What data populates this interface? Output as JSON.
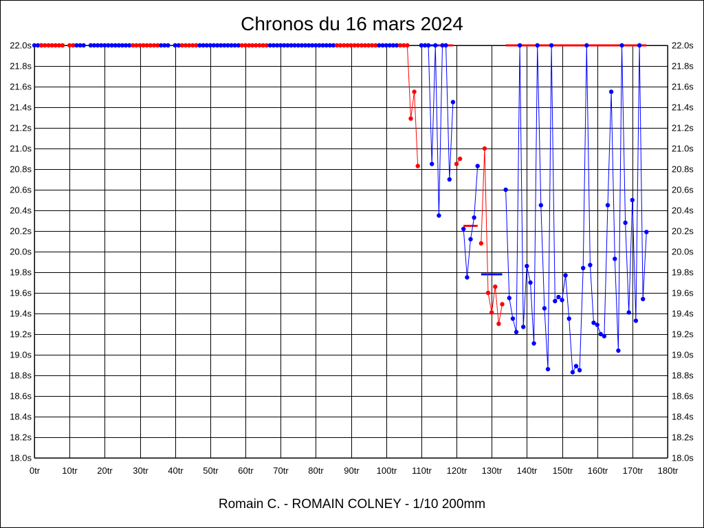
{
  "page": {
    "title": "Chronos du 16 mars 2024",
    "footer": "Romain C. - ROMAIN COLNEY - 1/10 200mm"
  },
  "chart_data": {
    "type": "line",
    "title": "Chronos du 16 mars 2024",
    "xlabel": "",
    "ylabel": "",
    "xlim": [
      0,
      180
    ],
    "ylim": [
      18.0,
      22.0
    ],
    "grid": true,
    "x_ticks": [
      0,
      10,
      20,
      30,
      40,
      50,
      60,
      70,
      80,
      90,
      100,
      110,
      120,
      130,
      140,
      150,
      160,
      170,
      180
    ],
    "x_tick_labels": [
      "0tr",
      "10tr",
      "20tr",
      "30tr",
      "40tr",
      "50tr",
      "60tr",
      "70tr",
      "80tr",
      "90tr",
      "100tr",
      "110tr",
      "120tr",
      "130tr",
      "140tr",
      "150tr",
      "160tr",
      "170tr",
      "180tr"
    ],
    "y_ticks": [
      18.0,
      18.2,
      18.4,
      18.6,
      18.8,
      19.0,
      19.2,
      19.4,
      19.6,
      19.8,
      20.0,
      20.2,
      20.4,
      20.6,
      20.8,
      21.0,
      21.2,
      21.4,
      21.6,
      21.8,
      22.0
    ],
    "y_tick_labels": [
      "18.0s",
      "18.2s",
      "18.4s",
      "18.6s",
      "18.8s",
      "19.0s",
      "19.2s",
      "19.4s",
      "19.6s",
      "19.8s",
      "20.0s",
      "20.2s",
      "20.4s",
      "20.6s",
      "20.8s",
      "21.0s",
      "21.2s",
      "21.4s",
      "21.6s",
      "21.8s",
      "22.0s"
    ],
    "colors": {
      "red": "#ff0000",
      "blue": "#0000ff"
    },
    "series": [
      {
        "color": "#0000ff",
        "points": [
          [
            0,
            22.0
          ],
          [
            1,
            22.0
          ],
          [
            2,
            22.0
          ]
        ]
      },
      {
        "color": "#ff0000",
        "points": [
          [
            2,
            22.0
          ],
          [
            3,
            22.0
          ],
          [
            4,
            22.0
          ],
          [
            5,
            22.0
          ],
          [
            6,
            22.0
          ],
          [
            7,
            22.0
          ],
          [
            8,
            22.0
          ]
        ]
      },
      {
        "color": "#ff0000",
        "points": [
          [
            10,
            22.0
          ],
          [
            11,
            22.0
          ]
        ]
      },
      {
        "color": "#0000ff",
        "points": [
          [
            12,
            22.0
          ],
          [
            13,
            22.0
          ],
          [
            14,
            22.0
          ]
        ]
      },
      {
        "color": "#0000ff",
        "points": [
          [
            16,
            22.0
          ],
          [
            17,
            22.0
          ],
          [
            18,
            22.0
          ],
          [
            19,
            22.0
          ],
          [
            20,
            22.0
          ],
          [
            21,
            22.0
          ],
          [
            22,
            22.0
          ],
          [
            23,
            22.0
          ],
          [
            24,
            22.0
          ],
          [
            25,
            22.0
          ],
          [
            26,
            22.0
          ],
          [
            27,
            22.0
          ]
        ]
      },
      {
        "color": "#ff0000",
        "points": [
          [
            28,
            22.0
          ],
          [
            29,
            22.0
          ],
          [
            30,
            22.0
          ],
          [
            31,
            22.0
          ],
          [
            32,
            22.0
          ],
          [
            33,
            22.0
          ],
          [
            34,
            22.0
          ],
          [
            35,
            22.0
          ]
        ]
      },
      {
        "color": "#0000ff",
        "points": [
          [
            36,
            22.0
          ],
          [
            37,
            22.0
          ],
          [
            38,
            22.0
          ]
        ]
      },
      {
        "color": "#0000ff",
        "points": [
          [
            40,
            22.0
          ],
          [
            41,
            22.0
          ]
        ]
      },
      {
        "color": "#ff0000",
        "points": [
          [
            42,
            22.0
          ],
          [
            43,
            22.0
          ],
          [
            44,
            22.0
          ],
          [
            45,
            22.0
          ],
          [
            46,
            22.0
          ]
        ]
      },
      {
        "color": "#0000ff",
        "points": [
          [
            47,
            22.0
          ],
          [
            48,
            22.0
          ],
          [
            49,
            22.0
          ],
          [
            50,
            22.0
          ],
          [
            51,
            22.0
          ],
          [
            52,
            22.0
          ],
          [
            53,
            22.0
          ],
          [
            54,
            22.0
          ],
          [
            55,
            22.0
          ],
          [
            56,
            22.0
          ],
          [
            57,
            22.0
          ],
          [
            58,
            22.0
          ]
        ]
      },
      {
        "color": "#ff0000",
        "points": [
          [
            59,
            22.0
          ],
          [
            60,
            22.0
          ],
          [
            61,
            22.0
          ],
          [
            62,
            22.0
          ],
          [
            63,
            22.0
          ],
          [
            64,
            22.0
          ],
          [
            65,
            22.0
          ],
          [
            66,
            22.0
          ]
        ]
      },
      {
        "color": "#0000ff",
        "points": [
          [
            67,
            22.0
          ],
          [
            68,
            22.0
          ],
          [
            69,
            22.0
          ],
          [
            70,
            22.0
          ],
          [
            71,
            22.0
          ],
          [
            72,
            22.0
          ],
          [
            73,
            22.0
          ],
          [
            74,
            22.0
          ],
          [
            75,
            22.0
          ],
          [
            76,
            22.0
          ],
          [
            77,
            22.0
          ],
          [
            78,
            22.0
          ],
          [
            79,
            22.0
          ],
          [
            80,
            22.0
          ],
          [
            81,
            22.0
          ],
          [
            82,
            22.0
          ],
          [
            83,
            22.0
          ],
          [
            84,
            22.0
          ],
          [
            85,
            22.0
          ]
        ]
      },
      {
        "color": "#ff0000",
        "points": [
          [
            86,
            22.0
          ],
          [
            87,
            22.0
          ],
          [
            88,
            22.0
          ],
          [
            89,
            22.0
          ],
          [
            90,
            22.0
          ],
          [
            91,
            22.0
          ],
          [
            92,
            22.0
          ],
          [
            93,
            22.0
          ],
          [
            94,
            22.0
          ],
          [
            95,
            22.0
          ],
          [
            96,
            22.0
          ],
          [
            97,
            22.0
          ]
        ]
      },
      {
        "color": "#0000ff",
        "points": [
          [
            98,
            22.0
          ],
          [
            99,
            22.0
          ],
          [
            100,
            22.0
          ],
          [
            101,
            22.0
          ],
          [
            102,
            22.0
          ],
          [
            103,
            22.0
          ]
        ]
      },
      {
        "color": "#ff0000",
        "points": [
          [
            104,
            22.0
          ],
          [
            105,
            22.0
          ],
          [
            106,
            22.0
          ],
          [
            107,
            21.29
          ],
          [
            108,
            21.55
          ],
          [
            109,
            20.83
          ]
        ]
      },
      {
        "color": "#0000ff",
        "points": [
          [
            110,
            22.0
          ],
          [
            111,
            22.0
          ],
          [
            112,
            22.0
          ],
          [
            113,
            20.85
          ],
          [
            114,
            22.0
          ],
          [
            115,
            20.35
          ],
          [
            116,
            22.0
          ],
          [
            117,
            22.0
          ],
          [
            118,
            20.7
          ],
          [
            119,
            21.45
          ]
        ]
      },
      {
        "color": "#ff0000",
        "points": [
          [
            120,
            20.85
          ],
          [
            121,
            20.9
          ]
        ]
      },
      {
        "color": "#0000ff",
        "points": [
          [
            122,
            20.22
          ],
          [
            123,
            19.75
          ],
          [
            124,
            20.12
          ],
          [
            125,
            20.33
          ],
          [
            126,
            20.83
          ]
        ]
      },
      {
        "color": "#ff0000",
        "points": [
          [
            127,
            20.08
          ],
          [
            128,
            21.0
          ],
          [
            129,
            19.6
          ],
          [
            130,
            19.41
          ],
          [
            131,
            19.66
          ],
          [
            132,
            19.3
          ],
          [
            133,
            19.49
          ]
        ]
      },
      {
        "color": "#0000ff",
        "points": [
          [
            134,
            20.6
          ],
          [
            135,
            19.55
          ],
          [
            136,
            19.35
          ],
          [
            137,
            19.22
          ],
          [
            138,
            22.0
          ],
          [
            139,
            19.27
          ],
          [
            140,
            19.86
          ],
          [
            141,
            19.7
          ],
          [
            142,
            19.11
          ],
          [
            143,
            22.0
          ],
          [
            144,
            20.45
          ],
          [
            145,
            19.45
          ],
          [
            146,
            18.86
          ],
          [
            147,
            22.0
          ],
          [
            148,
            19.52
          ],
          [
            149,
            19.56
          ],
          [
            150,
            19.53
          ],
          [
            151,
            19.77
          ],
          [
            152,
            19.35
          ],
          [
            153,
            18.83
          ],
          [
            154,
            18.89
          ],
          [
            155,
            18.85
          ],
          [
            156,
            19.84
          ],
          [
            157,
            22.0
          ],
          [
            158,
            19.87
          ],
          [
            159,
            19.31
          ],
          [
            160,
            19.29
          ],
          [
            161,
            19.2
          ],
          [
            162,
            19.18
          ],
          [
            163,
            20.45
          ],
          [
            164,
            21.55
          ],
          [
            165,
            19.93
          ],
          [
            166,
            19.04
          ],
          [
            167,
            22.0
          ],
          [
            168,
            20.28
          ],
          [
            169,
            19.41
          ],
          [
            170,
            20.5
          ],
          [
            171,
            19.33
          ],
          [
            172,
            22.0
          ],
          [
            173,
            19.54
          ],
          [
            174,
            20.19
          ]
        ]
      }
    ],
    "reference_lines": [
      {
        "color": "#0000ff",
        "x": [
          110,
          115
        ],
        "y": 22.0
      },
      {
        "color": "#ff0000",
        "x": [
          115,
          119
        ],
        "y": 22.0
      },
      {
        "color": "#ff0000",
        "x": [
          134,
          174
        ],
        "y": 22.0
      },
      {
        "color": "#ff0000",
        "x": [
          122,
          126
        ],
        "y": 20.25
      },
      {
        "color": "#0000ff",
        "x": [
          127,
          133
        ],
        "y": 19.78
      }
    ]
  }
}
